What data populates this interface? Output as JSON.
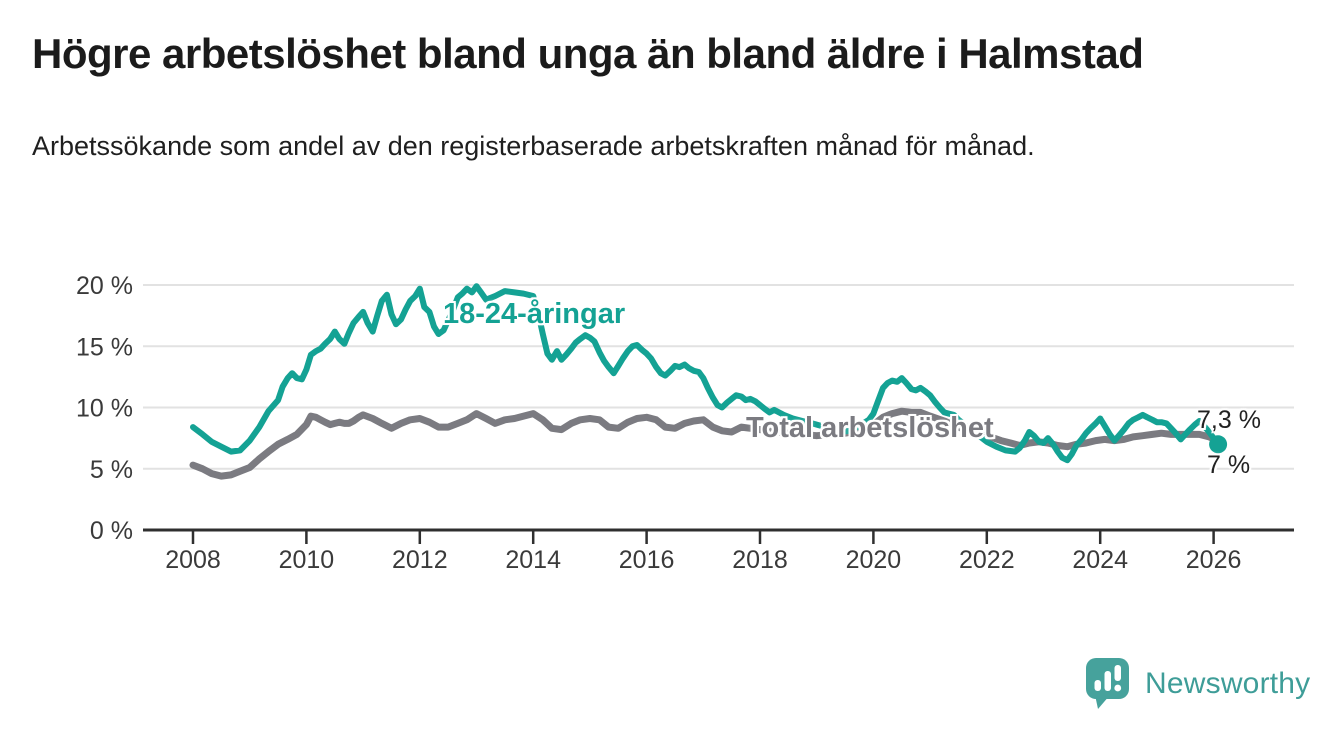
{
  "header": {
    "title": "Högre arbetslöshet bland unga än bland äldre i Halmstad",
    "subtitle": "Arbetssökande som andel av den registerbaserade arbetskraften månad för månad."
  },
  "chart_data": {
    "type": "line",
    "unit": "%",
    "grid": "horizontal",
    "legend_position": "inline-labels",
    "x_ticks": [
      "2008",
      "2010",
      "2012",
      "2014",
      "2016",
      "2018",
      "2020",
      "2022",
      "2024",
      "2026"
    ],
    "y_ticks": [
      "0 %",
      "5 %",
      "10 %",
      "15 %",
      "20 %"
    ],
    "y_tick_values": [
      0,
      5,
      10,
      15,
      20
    ],
    "xlim": [
      2007.1,
      2027.4
    ],
    "ylim": [
      0,
      21
    ],
    "series": [
      {
        "name": "18-24-åringar",
        "label": "18-24-åringar",
        "color": "#14a294",
        "end_label": "7 %",
        "end_value": 7.0,
        "end_dot": true,
        "line_width": 6,
        "points": [
          [
            2008.0,
            8.4
          ],
          [
            2008.17,
            7.8
          ],
          [
            2008.33,
            7.2
          ],
          [
            2008.5,
            6.8
          ],
          [
            2008.67,
            6.4
          ],
          [
            2008.83,
            6.5
          ],
          [
            2009.0,
            7.3
          ],
          [
            2009.17,
            8.4
          ],
          [
            2009.33,
            9.7
          ],
          [
            2009.5,
            10.6
          ],
          [
            2009.58,
            11.7
          ],
          [
            2009.67,
            12.4
          ],
          [
            2009.75,
            12.8
          ],
          [
            2009.83,
            12.4
          ],
          [
            2009.92,
            12.3
          ],
          [
            2010.0,
            13.1
          ],
          [
            2010.08,
            14.3
          ],
          [
            2010.17,
            14.6
          ],
          [
            2010.25,
            14.8
          ],
          [
            2010.33,
            15.2
          ],
          [
            2010.42,
            15.6
          ],
          [
            2010.5,
            16.2
          ],
          [
            2010.58,
            15.6
          ],
          [
            2010.67,
            15.2
          ],
          [
            2010.75,
            16.1
          ],
          [
            2010.83,
            16.9
          ],
          [
            2010.92,
            17.4
          ],
          [
            2011.0,
            17.8
          ],
          [
            2011.08,
            16.9
          ],
          [
            2011.17,
            16.2
          ],
          [
            2011.25,
            17.5
          ],
          [
            2011.33,
            18.7
          ],
          [
            2011.42,
            19.2
          ],
          [
            2011.5,
            17.6
          ],
          [
            2011.58,
            16.8
          ],
          [
            2011.67,
            17.2
          ],
          [
            2011.75,
            18.0
          ],
          [
            2011.83,
            18.7
          ],
          [
            2011.92,
            19.1
          ],
          [
            2012.0,
            19.7
          ],
          [
            2012.08,
            18.2
          ],
          [
            2012.17,
            17.8
          ],
          [
            2012.25,
            16.6
          ],
          [
            2012.33,
            16.0
          ],
          [
            2012.42,
            16.3
          ],
          [
            2012.5,
            17.1
          ],
          [
            2012.58,
            17.9
          ],
          [
            2012.67,
            19.0
          ],
          [
            2012.75,
            19.3
          ],
          [
            2012.83,
            19.7
          ],
          [
            2012.92,
            19.4
          ],
          [
            2013.0,
            19.9
          ],
          [
            2013.08,
            19.4
          ],
          [
            2013.17,
            18.8
          ],
          [
            2013.33,
            19.1
          ],
          [
            2013.5,
            19.5
          ],
          [
            2013.67,
            19.4
          ],
          [
            2013.83,
            19.3
          ],
          [
            2014.0,
            19.1
          ],
          [
            2014.08,
            17.9
          ],
          [
            2014.17,
            16.0
          ],
          [
            2014.25,
            14.4
          ],
          [
            2014.33,
            13.9
          ],
          [
            2014.42,
            14.6
          ],
          [
            2014.5,
            13.9
          ],
          [
            2014.58,
            14.3
          ],
          [
            2014.67,
            14.8
          ],
          [
            2014.75,
            15.3
          ],
          [
            2014.83,
            15.6
          ],
          [
            2014.92,
            15.9
          ],
          [
            2015.0,
            15.7
          ],
          [
            2015.08,
            15.4
          ],
          [
            2015.17,
            14.5
          ],
          [
            2015.25,
            13.8
          ],
          [
            2015.33,
            13.3
          ],
          [
            2015.42,
            12.8
          ],
          [
            2015.5,
            13.4
          ],
          [
            2015.58,
            14.0
          ],
          [
            2015.67,
            14.6
          ],
          [
            2015.75,
            15.0
          ],
          [
            2015.83,
            15.1
          ],
          [
            2015.92,
            14.7
          ],
          [
            2016.0,
            14.4
          ],
          [
            2016.08,
            14.0
          ],
          [
            2016.17,
            13.3
          ],
          [
            2016.25,
            12.8
          ],
          [
            2016.33,
            12.6
          ],
          [
            2016.42,
            13.0
          ],
          [
            2016.5,
            13.4
          ],
          [
            2016.58,
            13.3
          ],
          [
            2016.67,
            13.5
          ],
          [
            2016.75,
            13.2
          ],
          [
            2016.83,
            13.0
          ],
          [
            2016.92,
            12.9
          ],
          [
            2017.0,
            12.4
          ],
          [
            2017.08,
            11.6
          ],
          [
            2017.17,
            10.8
          ],
          [
            2017.25,
            10.2
          ],
          [
            2017.33,
            10.0
          ],
          [
            2017.42,
            10.4
          ],
          [
            2017.5,
            10.7
          ],
          [
            2017.58,
            11.0
          ],
          [
            2017.67,
            10.9
          ],
          [
            2017.75,
            10.6
          ],
          [
            2017.83,
            10.7
          ],
          [
            2017.92,
            10.5
          ],
          [
            2018.0,
            10.2
          ],
          [
            2018.08,
            9.9
          ],
          [
            2018.17,
            9.6
          ],
          [
            2018.25,
            9.8
          ],
          [
            2018.42,
            9.4
          ],
          [
            2018.58,
            9.1
          ],
          [
            2018.75,
            8.9
          ],
          [
            2018.92,
            8.7
          ],
          [
            2019.08,
            8.5
          ],
          [
            2019.25,
            8.2
          ],
          [
            2019.42,
            8.0
          ],
          [
            2019.58,
            8.1
          ],
          [
            2019.75,
            8.5
          ],
          [
            2019.92,
            9.0
          ],
          [
            2020.0,
            9.5
          ],
          [
            2020.08,
            10.5
          ],
          [
            2020.17,
            11.6
          ],
          [
            2020.25,
            12.0
          ],
          [
            2020.33,
            12.2
          ],
          [
            2020.42,
            12.1
          ],
          [
            2020.5,
            12.4
          ],
          [
            2020.58,
            12.0
          ],
          [
            2020.67,
            11.5
          ],
          [
            2020.75,
            11.4
          ],
          [
            2020.83,
            11.6
          ],
          [
            2020.92,
            11.3
          ],
          [
            2021.0,
            11.0
          ],
          [
            2021.08,
            10.5
          ],
          [
            2021.17,
            10.0
          ],
          [
            2021.25,
            9.6
          ],
          [
            2021.33,
            9.5
          ],
          [
            2021.42,
            9.4
          ],
          [
            2021.5,
            9.0
          ],
          [
            2021.67,
            8.4
          ],
          [
            2021.83,
            7.8
          ],
          [
            2022.0,
            7.2
          ],
          [
            2022.17,
            6.8
          ],
          [
            2022.33,
            6.5
          ],
          [
            2022.5,
            6.4
          ],
          [
            2022.58,
            6.7
          ],
          [
            2022.67,
            7.3
          ],
          [
            2022.75,
            8.0
          ],
          [
            2022.83,
            7.7
          ],
          [
            2022.92,
            7.2
          ],
          [
            2023.0,
            7.1
          ],
          [
            2023.08,
            7.5
          ],
          [
            2023.17,
            7.0
          ],
          [
            2023.25,
            6.4
          ],
          [
            2023.33,
            5.9
          ],
          [
            2023.42,
            5.7
          ],
          [
            2023.5,
            6.2
          ],
          [
            2023.58,
            6.9
          ],
          [
            2023.67,
            7.4
          ],
          [
            2023.75,
            7.9
          ],
          [
            2023.83,
            8.3
          ],
          [
            2023.92,
            8.7
          ],
          [
            2024.0,
            9.1
          ],
          [
            2024.08,
            8.5
          ],
          [
            2024.17,
            7.8
          ],
          [
            2024.25,
            7.3
          ],
          [
            2024.33,
            7.7
          ],
          [
            2024.42,
            8.2
          ],
          [
            2024.5,
            8.7
          ],
          [
            2024.58,
            9.0
          ],
          [
            2024.67,
            9.2
          ],
          [
            2024.75,
            9.4
          ],
          [
            2024.83,
            9.2
          ],
          [
            2024.92,
            9.0
          ],
          [
            2025.0,
            8.8
          ],
          [
            2025.08,
            8.8
          ],
          [
            2025.17,
            8.7
          ],
          [
            2025.25,
            8.3
          ],
          [
            2025.33,
            7.9
          ],
          [
            2025.42,
            7.4
          ],
          [
            2025.5,
            7.8
          ],
          [
            2025.58,
            8.2
          ],
          [
            2025.67,
            8.6
          ],
          [
            2025.75,
            8.9
          ],
          [
            2025.83,
            8.5
          ],
          [
            2025.92,
            8.0
          ],
          [
            2026.0,
            7.5
          ],
          [
            2026.08,
            7.0
          ]
        ]
      },
      {
        "name": "Total arbetslöshet",
        "label": "Total arbetslöshet",
        "color": "#7b7b81",
        "end_label": "7,3 %",
        "end_value": 7.3,
        "end_dot": false,
        "line_width": 7,
        "points": [
          [
            2008.0,
            5.3
          ],
          [
            2008.17,
            5.0
          ],
          [
            2008.33,
            4.6
          ],
          [
            2008.5,
            4.4
          ],
          [
            2008.67,
            4.5
          ],
          [
            2008.83,
            4.8
          ],
          [
            2009.0,
            5.1
          ],
          [
            2009.17,
            5.8
          ],
          [
            2009.33,
            6.4
          ],
          [
            2009.5,
            7.0
          ],
          [
            2009.67,
            7.4
          ],
          [
            2009.83,
            7.8
          ],
          [
            2010.0,
            8.6
          ],
          [
            2010.08,
            9.3
          ],
          [
            2010.17,
            9.2
          ],
          [
            2010.25,
            9.0
          ],
          [
            2010.33,
            8.8
          ],
          [
            2010.42,
            8.6
          ],
          [
            2010.5,
            8.7
          ],
          [
            2010.58,
            8.8
          ],
          [
            2010.67,
            8.7
          ],
          [
            2010.75,
            8.7
          ],
          [
            2010.83,
            8.9
          ],
          [
            2010.92,
            9.2
          ],
          [
            2011.0,
            9.4
          ],
          [
            2011.17,
            9.1
          ],
          [
            2011.33,
            8.7
          ],
          [
            2011.5,
            8.3
          ],
          [
            2011.67,
            8.7
          ],
          [
            2011.83,
            9.0
          ],
          [
            2012.0,
            9.1
          ],
          [
            2012.17,
            8.8
          ],
          [
            2012.33,
            8.4
          ],
          [
            2012.5,
            8.4
          ],
          [
            2012.67,
            8.7
          ],
          [
            2012.83,
            9.0
          ],
          [
            2013.0,
            9.5
          ],
          [
            2013.17,
            9.1
          ],
          [
            2013.33,
            8.7
          ],
          [
            2013.5,
            9.0
          ],
          [
            2013.67,
            9.1
          ],
          [
            2013.83,
            9.3
          ],
          [
            2014.0,
            9.5
          ],
          [
            2014.17,
            9.0
          ],
          [
            2014.33,
            8.3
          ],
          [
            2014.5,
            8.2
          ],
          [
            2014.67,
            8.7
          ],
          [
            2014.83,
            9.0
          ],
          [
            2015.0,
            9.1
          ],
          [
            2015.17,
            9.0
          ],
          [
            2015.33,
            8.4
          ],
          [
            2015.5,
            8.3
          ],
          [
            2015.67,
            8.8
          ],
          [
            2015.83,
            9.1
          ],
          [
            2016.0,
            9.2
          ],
          [
            2016.17,
            9.0
          ],
          [
            2016.33,
            8.4
          ],
          [
            2016.5,
            8.3
          ],
          [
            2016.67,
            8.7
          ],
          [
            2016.83,
            8.9
          ],
          [
            2017.0,
            9.0
          ],
          [
            2017.17,
            8.4
          ],
          [
            2017.33,
            8.1
          ],
          [
            2017.5,
            8.0
          ],
          [
            2017.67,
            8.4
          ],
          [
            2017.83,
            8.3
          ],
          [
            2018.0,
            8.2
          ],
          [
            2018.25,
            8.0
          ],
          [
            2018.5,
            7.9
          ],
          [
            2018.75,
            7.8
          ],
          [
            2019.0,
            7.7
          ],
          [
            2019.25,
            7.8
          ],
          [
            2019.5,
            7.9
          ],
          [
            2019.75,
            8.1
          ],
          [
            2020.0,
            8.6
          ],
          [
            2020.17,
            9.2
          ],
          [
            2020.33,
            9.5
          ],
          [
            2020.5,
            9.7
          ],
          [
            2020.67,
            9.6
          ],
          [
            2020.83,
            9.6
          ],
          [
            2021.0,
            9.3
          ],
          [
            2021.25,
            8.9
          ],
          [
            2021.5,
            8.4
          ],
          [
            2021.75,
            8.0
          ],
          [
            2022.0,
            7.7
          ],
          [
            2022.25,
            7.3
          ],
          [
            2022.42,
            7.1
          ],
          [
            2022.58,
            6.9
          ],
          [
            2022.75,
            7.1
          ],
          [
            2022.92,
            7.2
          ],
          [
            2023.08,
            7.1
          ],
          [
            2023.25,
            6.9
          ],
          [
            2023.42,
            6.8
          ],
          [
            2023.58,
            7.0
          ],
          [
            2023.75,
            7.1
          ],
          [
            2023.92,
            7.3
          ],
          [
            2024.08,
            7.4
          ],
          [
            2024.25,
            7.3
          ],
          [
            2024.42,
            7.4
          ],
          [
            2024.58,
            7.6
          ],
          [
            2024.75,
            7.7
          ],
          [
            2024.92,
            7.8
          ],
          [
            2025.08,
            7.9
          ],
          [
            2025.25,
            7.8
          ],
          [
            2025.42,
            7.8
          ],
          [
            2025.58,
            7.8
          ],
          [
            2025.75,
            7.8
          ],
          [
            2025.92,
            7.6
          ],
          [
            2026.08,
            7.3
          ]
        ]
      }
    ]
  },
  "branding": {
    "name": "Newsworthy"
  },
  "colors": {
    "accent_teal": "#14a294",
    "line_gray": "#7b7b81",
    "brand_teal": "#3e9d98",
    "gridline": "#e2e2e2",
    "axis": "#2f2f2f"
  }
}
